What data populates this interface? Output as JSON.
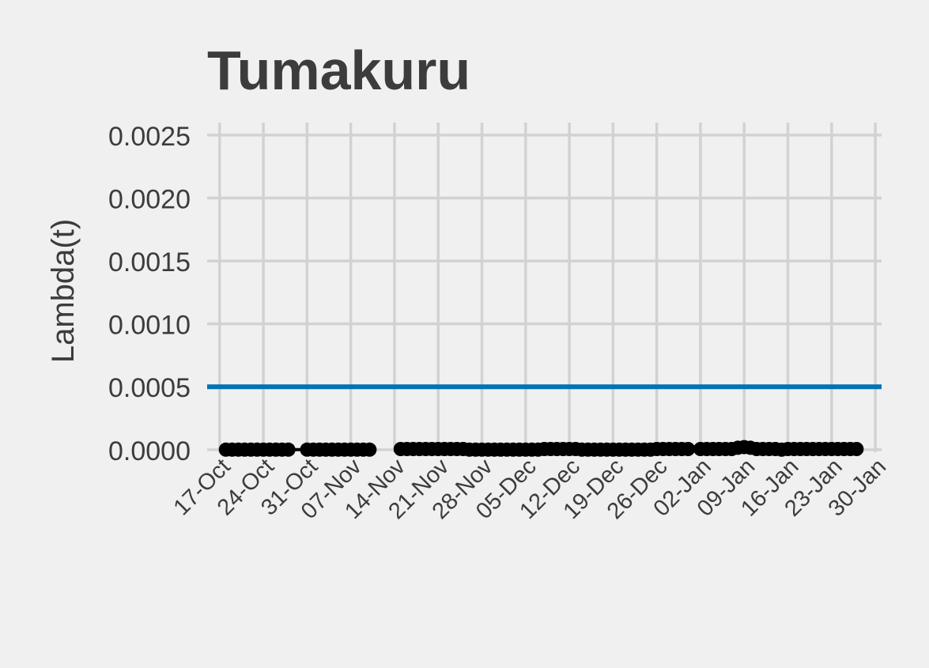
{
  "chart_data": {
    "type": "line",
    "title": "Tumakuru",
    "xlabel": "",
    "ylabel": "Lambda(t)",
    "x_tick_labels": [
      "17-Oct",
      "24-Oct",
      "31-Oct",
      "07-Nov",
      "14-Nov",
      "21-Nov",
      "28-Nov",
      "05-Dec",
      "12-Dec",
      "19-Dec",
      "26-Dec",
      "02-Jan",
      "09-Jan",
      "16-Jan",
      "23-Jan",
      "30-Jan"
    ],
    "x_ticks": [
      "2020-10-17",
      "2020-10-24",
      "2020-10-31",
      "2020-11-07",
      "2020-11-14",
      "2020-11-21",
      "2020-11-28",
      "2020-12-05",
      "2020-12-12",
      "2020-12-19",
      "2020-12-26",
      "2021-01-02",
      "2021-01-09",
      "2021-01-16",
      "2021-01-23",
      "2021-01-30"
    ],
    "xlim": [
      "2020-10-15",
      "2021-01-31"
    ],
    "y_tick_labels": [
      "0.0000",
      "0.0005",
      "0.0010",
      "0.0015",
      "0.0020",
      "0.0025"
    ],
    "y_ticks": [
      0,
      0.0005,
      0.001,
      0.0015,
      0.002,
      0.0025
    ],
    "ylim": [
      -2e-05,
      0.0026
    ],
    "grid": true,
    "legend": "none",
    "reference_line": {
      "y": 0.0005,
      "color": "#0072B2"
    },
    "series": [
      {
        "color": "#000000",
        "segments": [
          [
            [
              "2020-10-18",
              0
            ],
            [
              "2020-10-19",
              0
            ],
            [
              "2020-10-20",
              0
            ],
            [
              "2020-10-21",
              0
            ],
            [
              "2020-10-22",
              0
            ],
            [
              "2020-10-23",
              0
            ],
            [
              "2020-10-24",
              0
            ],
            [
              "2020-10-25",
              0
            ],
            [
              "2020-10-26",
              0
            ],
            [
              "2020-10-27",
              0
            ],
            [
              "2020-10-28",
              0
            ],
            [
              "2020-10-31",
              0
            ],
            [
              "2020-11-01",
              0
            ],
            [
              "2020-11-02",
              0
            ],
            [
              "2020-11-03",
              0
            ],
            [
              "2020-11-04",
              0
            ],
            [
              "2020-11-05",
              0
            ],
            [
              "2020-11-06",
              0
            ],
            [
              "2020-11-07",
              0
            ],
            [
              "2020-11-08",
              0
            ],
            [
              "2020-11-09",
              0
            ],
            [
              "2020-11-10",
              0
            ]
          ],
          [
            [
              "2020-11-15",
              5e-06
            ],
            [
              "2020-11-16",
              5e-06
            ],
            [
              "2020-11-17",
              5e-06
            ],
            [
              "2020-11-18",
              5e-06
            ],
            [
              "2020-11-19",
              5e-06
            ],
            [
              "2020-11-20",
              5e-06
            ],
            [
              "2020-11-21",
              5e-06
            ],
            [
              "2020-11-22",
              5e-06
            ],
            [
              "2020-11-23",
              5e-06
            ],
            [
              "2020-11-24",
              5e-06
            ],
            [
              "2020-11-25",
              5e-06
            ],
            [
              "2020-11-26",
              0
            ],
            [
              "2020-11-27",
              0
            ],
            [
              "2020-11-28",
              0
            ],
            [
              "2020-11-29",
              0
            ],
            [
              "2020-11-30",
              0
            ],
            [
              "2020-12-01",
              0
            ],
            [
              "2020-12-02",
              0
            ],
            [
              "2020-12-03",
              0
            ],
            [
              "2020-12-04",
              0
            ],
            [
              "2020-12-05",
              0
            ],
            [
              "2020-12-06",
              0
            ],
            [
              "2020-12-07",
              0
            ],
            [
              "2020-12-08",
              5e-06
            ],
            [
              "2020-12-09",
              5e-06
            ],
            [
              "2020-12-10",
              5e-06
            ],
            [
              "2020-12-11",
              5e-06
            ],
            [
              "2020-12-12",
              5e-06
            ],
            [
              "2020-12-13",
              5e-06
            ],
            [
              "2020-12-14",
              0
            ],
            [
              "2020-12-15",
              0
            ],
            [
              "2020-12-16",
              0
            ],
            [
              "2020-12-17",
              0
            ],
            [
              "2020-12-18",
              0
            ],
            [
              "2020-12-19",
              0
            ],
            [
              "2020-12-20",
              0
            ],
            [
              "2020-12-21",
              0
            ],
            [
              "2020-12-22",
              0
            ],
            [
              "2020-12-23",
              0
            ],
            [
              "2020-12-24",
              0
            ],
            [
              "2020-12-25",
              0
            ],
            [
              "2020-12-26",
              5e-06
            ],
            [
              "2020-12-27",
              5e-06
            ],
            [
              "2020-12-28",
              5e-06
            ],
            [
              "2020-12-29",
              5e-06
            ],
            [
              "2020-12-30",
              5e-06
            ],
            [
              "2020-12-31",
              5e-06
            ],
            [
              "2021-01-02",
              5e-06
            ],
            [
              "2021-01-03",
              5e-06
            ],
            [
              "2021-01-04",
              5e-06
            ],
            [
              "2021-01-05",
              5e-06
            ],
            [
              "2021-01-06",
              5e-06
            ],
            [
              "2021-01-07",
              5e-06
            ],
            [
              "2021-01-08",
              1.5e-05
            ],
            [
              "2021-01-09",
              2e-05
            ],
            [
              "2021-01-10",
              1.5e-05
            ],
            [
              "2021-01-11",
              5e-06
            ],
            [
              "2021-01-12",
              5e-06
            ],
            [
              "2021-01-13",
              5e-06
            ],
            [
              "2021-01-14",
              5e-06
            ],
            [
              "2021-01-15",
              0
            ],
            [
              "2021-01-16",
              5e-06
            ],
            [
              "2021-01-17",
              5e-06
            ],
            [
              "2021-01-18",
              5e-06
            ],
            [
              "2021-01-19",
              5e-06
            ],
            [
              "2021-01-20",
              5e-06
            ],
            [
              "2021-01-21",
              5e-06
            ],
            [
              "2021-01-22",
              5e-06
            ],
            [
              "2021-01-23",
              5e-06
            ],
            [
              "2021-01-24",
              5e-06
            ],
            [
              "2021-01-25",
              5e-06
            ],
            [
              "2021-01-26",
              5e-06
            ],
            [
              "2021-01-27",
              5e-06
            ]
          ]
        ]
      }
    ]
  }
}
